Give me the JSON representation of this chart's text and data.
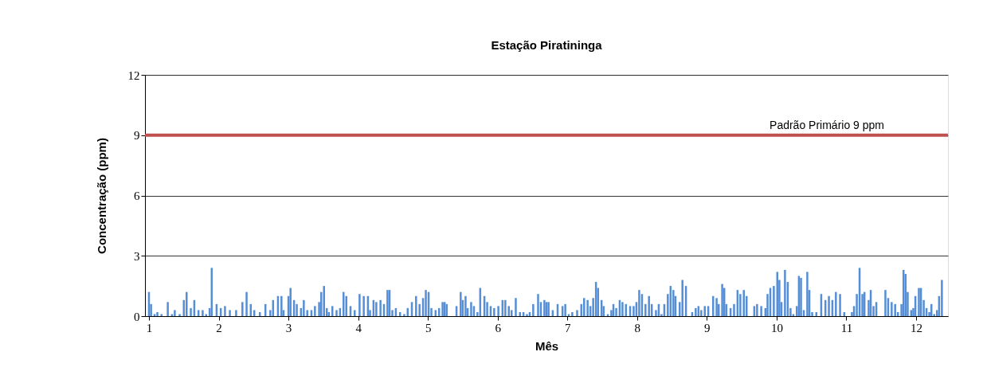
{
  "chart_data": {
    "type": "bar",
    "title": "Estação  Piratininga",
    "xlabel": "Mês",
    "ylabel": "Concentração (ppm)",
    "x": [
      1.0,
      1.03,
      1.08,
      1.12,
      1.18,
      1.27,
      1.33,
      1.37,
      1.44,
      1.5,
      1.54,
      1.6,
      1.65,
      1.71,
      1.77,
      1.82,
      1.87,
      1.9,
      1.97,
      2.03,
      2.09,
      2.16,
      2.25,
      2.34,
      2.4,
      2.46,
      2.51,
      2.59,
      2.67,
      2.74,
      2.78,
      2.85,
      2.9,
      2.93,
      3.0,
      3.03,
      3.08,
      3.12,
      3.18,
      3.22,
      3.27,
      3.33,
      3.38,
      3.44,
      3.47,
      3.51,
      3.55,
      3.58,
      3.63,
      3.69,
      3.74,
      3.79,
      3.83,
      3.89,
      3.95,
      4.02,
      4.08,
      4.14,
      4.17,
      4.22,
      4.26,
      4.32,
      4.37,
      4.42,
      4.45,
      4.49,
      4.54,
      4.6,
      4.66,
      4.71,
      4.77,
      4.83,
      4.88,
      4.93,
      4.97,
      5.01,
      5.05,
      5.11,
      5.16,
      5.21,
      5.24,
      5.27,
      5.32,
      5.38,
      5.41,
      5.47,
      5.5,
      5.54,
      5.57,
      5.62,
      5.66,
      5.71,
      5.75,
      5.81,
      5.85,
      5.9,
      5.95,
      6.01,
      6.07,
      6.11,
      6.16,
      6.2,
      6.26,
      6.32,
      6.37,
      6.42,
      6.46,
      6.51,
      6.58,
      6.62,
      6.67,
      6.7,
      6.73,
      6.79,
      6.86,
      6.93,
      6.97,
      7.02,
      7.07,
      7.14,
      7.2,
      7.24,
      7.29,
      7.33,
      7.37,
      7.41,
      7.44,
      7.49,
      7.52,
      7.58,
      7.63,
      7.66,
      7.7,
      7.75,
      7.79,
      7.84,
      7.9,
      7.95,
      7.99,
      8.03,
      8.07,
      8.12,
      8.17,
      8.21,
      8.27,
      8.31,
      8.35,
      8.39,
      8.44,
      8.48,
      8.52,
      8.55,
      8.61,
      8.65,
      8.7,
      8.74,
      8.79,
      8.84,
      8.88,
      8.92,
      8.97,
      9.02,
      9.09,
      9.14,
      9.17,
      9.22,
      9.25,
      9.28,
      9.34,
      9.39,
      9.44,
      9.48,
      9.53,
      9.57,
      9.62,
      9.68,
      9.72,
      9.78,
      9.84,
      9.87,
      9.91,
      9.96,
      10.01,
      10.04,
      10.07,
      10.12,
      10.16,
      10.2,
      10.24,
      10.29,
      10.32,
      10.35,
      10.39,
      10.44,
      10.47,
      10.51,
      10.57,
      10.64,
      10.7,
      10.75,
      10.8,
      10.85,
      10.91,
      10.97,
      11.02,
      11.08,
      11.11,
      11.15,
      11.19,
      11.23,
      11.26,
      11.32,
      11.35,
      11.39,
      11.43,
      11.49,
      11.56,
      11.6,
      11.65,
      11.7,
      11.74,
      11.79,
      11.82,
      11.85,
      11.88,
      11.93,
      11.96,
      11.99,
      12.04,
      12.07,
      12.11,
      12.15,
      12.19,
      12.22,
      12.26,
      12.3,
      12.33,
      12.37
    ],
    "series": [
      {
        "color": "#558ed5",
        "values": [
          1.2,
          0.6,
          0.1,
          0.2,
          0.1,
          0.7,
          0.1,
          0.3,
          0.1,
          0.8,
          1.2,
          0.4,
          0.8,
          0.3,
          0.3,
          0.1,
          0.4,
          2.4,
          0.6,
          0.4,
          0.5,
          0.3,
          0.3,
          0.7,
          1.2,
          0.6,
          0.3,
          0.2,
          0.6,
          0.3,
          0.8,
          1.0,
          1.0,
          0.3,
          1.0,
          1.4,
          0.8,
          0.6,
          0.4,
          0.8,
          0.3,
          0.3,
          0.5,
          0.7,
          1.2,
          1.5,
          0.4,
          0.2,
          0.5,
          0.3,
          0.4,
          1.2,
          1.0,
          0.5,
          0.3,
          1.1,
          1.0,
          1.0,
          0.3,
          0.8,
          0.7,
          0.8,
          0.6,
          1.3,
          1.3,
          0.3,
          0.4,
          0.2,
          0.1,
          0.4,
          0.7,
          1.0,
          0.6,
          0.9,
          1.3,
          1.2,
          0.4,
          0.3,
          0.4,
          0.7,
          0.7,
          0.6,
          0.0,
          0.0,
          0.5,
          1.2,
          0.8,
          1.0,
          0.4,
          0.7,
          0.5,
          0.2,
          1.4,
          1.0,
          0.7,
          0.5,
          0.4,
          0.5,
          0.8,
          0.8,
          0.5,
          0.3,
          0.9,
          0.2,
          0.2,
          0.1,
          0.2,
          0.6,
          1.1,
          0.7,
          0.8,
          0.7,
          0.7,
          0.3,
          0.6,
          0.5,
          0.6,
          0.1,
          0.2,
          0.3,
          0.6,
          0.9,
          0.8,
          0.5,
          0.9,
          1.7,
          1.4,
          0.8,
          0.5,
          0.1,
          0.3,
          0.6,
          0.4,
          0.8,
          0.7,
          0.6,
          0.5,
          0.5,
          0.7,
          1.3,
          1.1,
          0.6,
          1.0,
          0.6,
          0.3,
          0.6,
          0.1,
          0.6,
          1.1,
          1.5,
          1.3,
          1.0,
          0.7,
          1.8,
          1.5,
          0.0,
          0.2,
          0.4,
          0.5,
          0.3,
          0.5,
          0.5,
          1.0,
          0.9,
          0.6,
          1.6,
          1.4,
          0.6,
          0.4,
          0.6,
          1.3,
          1.1,
          1.3,
          1.0,
          0.0,
          0.5,
          0.6,
          0.5,
          0.4,
          1.1,
          1.4,
          1.5,
          2.2,
          1.8,
          0.7,
          2.3,
          1.7,
          0.4,
          0.1,
          0.5,
          2.0,
          1.9,
          0.3,
          2.2,
          1.3,
          0.2,
          0.2,
          1.1,
          0.8,
          1.0,
          0.8,
          1.2,
          1.1,
          0.2,
          0.0,
          0.2,
          0.5,
          1.1,
          2.4,
          1.1,
          1.2,
          0.8,
          1.3,
          0.5,
          0.7,
          0.0,
          1.3,
          0.9,
          0.7,
          0.6,
          0.2,
          0.6,
          2.3,
          2.1,
          1.2,
          0.3,
          0.4,
          1.0,
          1.4,
          1.4,
          0.8,
          0.4,
          0.2,
          0.6,
          0.1,
          0.3,
          1.0,
          1.8
        ]
      }
    ],
    "xlim": [
      1,
      12.4
    ],
    "xticks": [
      1,
      2,
      3,
      4,
      5,
      6,
      7,
      8,
      9,
      10,
      11,
      12
    ],
    "ylim": [
      0,
      12
    ],
    "yticks": [
      0,
      3,
      6,
      9,
      12
    ],
    "grid": "y",
    "ref_lines": [
      {
        "axis": "y",
        "value": 9,
        "label": "Padrão Primário 9 ppm",
        "color": "#c0504d",
        "line_style": "solid"
      }
    ]
  }
}
